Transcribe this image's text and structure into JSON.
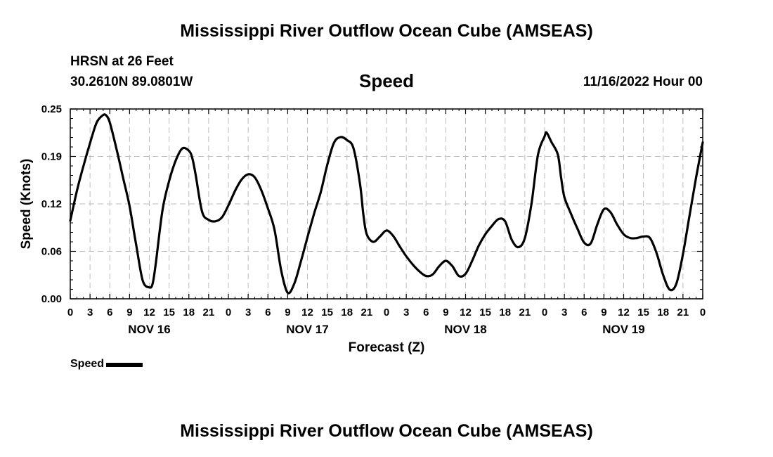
{
  "header": {
    "title": "Mississippi River Outflow Ocean Cube (AMSEAS)",
    "station": "HRSN at 26 Feet",
    "coords": "30.2610N  89.0801W",
    "panel_title": "Speed",
    "datetime": "11/16/2022 Hour 00"
  },
  "legend": {
    "label": "Speed",
    "color": "#000000"
  },
  "footer": {
    "title": "Mississippi River Outflow Ocean Cube (AMSEAS)"
  },
  "chart_data": {
    "type": "line",
    "title": "Speed",
    "xlabel": "Forecast (Z)",
    "ylabel": "Speed (Knots)",
    "x_unit": "hours from 11/16/2022 00Z",
    "xlim": [
      0,
      96
    ],
    "ylim": [
      0,
      0.25
    ],
    "y_ticks": [
      "0.00",
      "0.06",
      "0.12",
      "0.19",
      "0.25"
    ],
    "x_tick_labels": [
      "0",
      "3",
      "6",
      "9",
      "12",
      "15",
      "18",
      "21",
      "0",
      "3",
      "6",
      "9",
      "12",
      "15",
      "18",
      "21",
      "0",
      "3",
      "6",
      "9",
      "12",
      "15",
      "18",
      "21",
      "0",
      "3",
      "6",
      "9",
      "12",
      "15",
      "18",
      "21",
      "0"
    ],
    "day_labels": [
      {
        "label": "NOV 16",
        "hour": 12
      },
      {
        "label": "NOV 17",
        "hour": 36
      },
      {
        "label": "NOV 18",
        "hour": 60
      },
      {
        "label": "NOV 19",
        "hour": 84
      }
    ],
    "grid": true,
    "series": [
      {
        "name": "Speed",
        "color": "#000000",
        "x": [
          0,
          1,
          2,
          3,
          4,
          5,
          5.5,
          6,
          7,
          8,
          9,
          10,
          11,
          12,
          12.5,
          13,
          14,
          15,
          16,
          17,
          18,
          18.5,
          19,
          20,
          21,
          22,
          23,
          24,
          25,
          26,
          27,
          28,
          29,
          30,
          31,
          32,
          33,
          34,
          35,
          36,
          37,
          38,
          39,
          40,
          41,
          42,
          43,
          44,
          44.5,
          45,
          46,
          47,
          48,
          49,
          50,
          51,
          52,
          53,
          54,
          55,
          56,
          57,
          58,
          59,
          60,
          61,
          62,
          63,
          64,
          65,
          66,
          67,
          68,
          69,
          70,
          71,
          72,
          72.3,
          73,
          74,
          74.5,
          75,
          76,
          77,
          78,
          79,
          80,
          81,
          82,
          83,
          84,
          85,
          86,
          87,
          88,
          89,
          90,
          91,
          92,
          93,
          94,
          95,
          96
        ],
        "y": [
          0.103,
          0.142,
          0.175,
          0.205,
          0.232,
          0.242,
          0.241,
          0.232,
          0.198,
          0.16,
          0.122,
          0.071,
          0.024,
          0.015,
          0.02,
          0.048,
          0.117,
          0.155,
          0.182,
          0.198,
          0.195,
          0.186,
          0.165,
          0.115,
          0.104,
          0.102,
          0.107,
          0.123,
          0.142,
          0.157,
          0.164,
          0.16,
          0.143,
          0.119,
          0.091,
          0.038,
          0.008,
          0.02,
          0.049,
          0.081,
          0.112,
          0.14,
          0.176,
          0.205,
          0.213,
          0.209,
          0.198,
          0.15,
          0.11,
          0.085,
          0.075,
          0.082,
          0.09,
          0.083,
          0.069,
          0.056,
          0.045,
          0.036,
          0.03,
          0.032,
          0.043,
          0.05,
          0.043,
          0.03,
          0.033,
          0.05,
          0.07,
          0.085,
          0.096,
          0.105,
          0.102,
          0.078,
          0.068,
          0.08,
          0.125,
          0.19,
          0.214,
          0.219,
          0.207,
          0.19,
          0.16,
          0.134,
          0.112,
          0.092,
          0.074,
          0.073,
          0.098,
          0.118,
          0.114,
          0.098,
          0.085,
          0.08,
          0.08,
          0.082,
          0.08,
          0.06,
          0.031,
          0.012,
          0.02,
          0.059,
          0.11,
          0.16,
          0.206
        ]
      }
    ]
  }
}
